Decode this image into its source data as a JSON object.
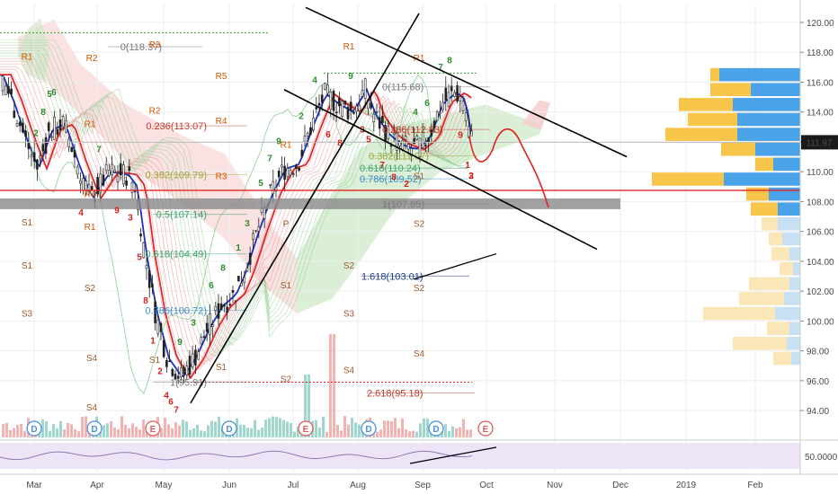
{
  "chart_data": {
    "type": "line",
    "subtype": "candlestick",
    "price_axis": {
      "ylim": [
        92.2,
        121.2
      ],
      "ticks": [
        "120.00",
        "118.00",
        "116.00",
        "114.00",
        "112.00",
        "110.00",
        "108.00",
        "106.00",
        "104.00",
        "102.00",
        "100.00",
        "98.00",
        "96.00",
        "94.00"
      ]
    },
    "current_price": {
      "value": 111.97,
      "label": "111.97",
      "color": "#1a1a1a"
    },
    "indicator_axis": {
      "ticks": [
        "50.0000"
      ]
    },
    "time_axis": {
      "labels": [
        "Mar",
        "Apr",
        "May",
        "Jun",
        "Jul",
        "Aug",
        "Sep",
        "Oct",
        "Nov",
        "Dec",
        "2019",
        "Feb"
      ]
    },
    "fib_levels": [
      {
        "label": "0(118.37)",
        "price": 118.37,
        "color": "#787878"
      },
      {
        "label": "0.236(113.07)",
        "price": 113.07,
        "color": "#c0392b"
      },
      {
        "label": "0.382(109.79)",
        "price": 109.79,
        "color": "#9aa83a"
      },
      {
        "label": "0.5(107.14)",
        "price": 107.14,
        "color": "#3aa36a"
      },
      {
        "label": "0.618(104.49)",
        "price": 104.49,
        "color": "#3aa36a"
      },
      {
        "label": "0.786(100.72)",
        "price": 100.72,
        "color": "#3a8fc4"
      },
      {
        "label": "1(95.91)",
        "price": 95.91,
        "color": "#787878"
      },
      {
        "label": "0(115.68)",
        "price": 115.68,
        "color": "#787878"
      },
      {
        "label": "0.236(112.83)",
        "price": 112.83,
        "color": "#c0392b"
      },
      {
        "label": "0.382(111.07)",
        "price": 111.07,
        "color": "#9aa83a"
      },
      {
        "label": "0.618(110.24)",
        "price": 110.24,
        "color": "#3aa36a"
      },
      {
        "label": "0.786(109.52)",
        "price": 109.52,
        "color": "#3a8fc4"
      },
      {
        "label": "1(107.85)",
        "price": 107.85,
        "color": "#787878"
      },
      {
        "label": "1.618(103.01)",
        "price": 103.01,
        "color": "#1f3a93"
      },
      {
        "label": "2.618(95.18)",
        "price": 95.18,
        "color": "#c0392b"
      }
    ],
    "pivot_labels": [
      "R3",
      "R2",
      "R1",
      "R5",
      "R4",
      "S1",
      "S2",
      "S3",
      "S4",
      "P"
    ],
    "td_counts": [
      "1",
      "2",
      "3",
      "4",
      "5",
      "6",
      "7",
      "8",
      "9"
    ],
    "event_markers": [
      "D",
      "E"
    ],
    "series": [
      {
        "name": "",
        "color": "#1f2fbf"
      },
      {
        "name": "",
        "color": "#e0262a"
      }
    ],
    "support_line": {
      "from": [
        "May",
        94.5
      ],
      "to": [
        "Aug",
        120.5
      ]
    },
    "forecast_path": {
      "color": "#e02424",
      "points": [
        [
          112.4,
          "Sep"
        ],
        [
          110.6,
          "Sep"
        ],
        [
          110.9,
          "Sep"
        ],
        [
          112.8,
          "Sep"
        ],
        [
          111.0,
          "Oct"
        ],
        [
          107.8,
          "Oct"
        ]
      ]
    }
  }
}
